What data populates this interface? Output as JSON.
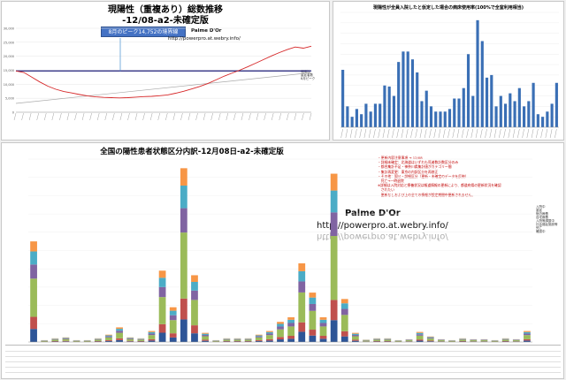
{
  "panel1": {
    "title": "現陽性（重複あり）総数推移",
    "subtitle": "-12/08-a2-未確定版",
    "peak_label": "8月のピーク14,752の境界線",
    "watermark_name": "Palme D'Or",
    "watermark_url": "http://powerpro.at.webry.info/",
    "y_ticks": [
      "30,000",
      "25,000",
      "20,000",
      "15,000",
      "10,000",
      "5,000",
      "0"
    ],
    "legend": [
      "現陽性",
      "重症者数",
      "8月ピーク"
    ]
  },
  "panel2": {
    "title": "現陽性が全員入院したと仮定した場合の病床使用率(100%で全室利用相当)"
  },
  "panel3": {
    "title": "全国の陽性患者状態区分内訳-12月08日-a2-未確定版",
    "watermark_name": "Palme D'Or",
    "watermark_url": "http://powerpro.at.webry.info/",
    "notes": [
      "・更新内容注意事項 → 12/08",
      "・詳細未確定：北海道はいずれも死者数計数区分のみ",
      "・都合集計不足・神奈川県集計値がカテゴリー間",
      "・集計再変更：東京の内訳区分を再修正",
      "・その他：国公・詳細区分（更新・未確定のデータを反映）",
      "　死亡→一時退院",
      "",
      "※詳細は入院対応と療養状況は報道情報の更新により、都道府県の更新状況を確認",
      "　されたい",
      "　更新なしおよび上の全ての情報が設定期間中更新されません。"
    ],
    "legend": [
      "入院中",
      "重症",
      "宿泊療養",
      "自宅療養",
      "入院等調整中",
      "社会福祉施設等",
      "死亡",
      "確認中"
    ]
  },
  "chart_data": [
    {
      "type": "line",
      "title": "現陽性（重複あり）総数推移",
      "subtitle": "-12/08-a2-未確定版",
      "ylim": [
        0,
        30000
      ],
      "reference_line": 14752,
      "series": [
        {
          "values": [
            14752,
            14200,
            12500,
            10800,
            9300,
            8200,
            7400,
            6900,
            6300,
            5800,
            5500,
            5300,
            5200,
            5100,
            5200,
            5400,
            5600,
            5700,
            5900,
            6200,
            6800,
            7500,
            8300,
            9200,
            10200,
            11500,
            12800,
            13900,
            15000,
            16200,
            17500,
            18800,
            20100,
            21300,
            22400,
            23300,
            22900,
            23600
          ]
        }
      ]
    },
    {
      "type": "bar",
      "title": "現陽性が全員入院したと仮定した場合の病床使用率(100%で全室利用相当)",
      "values": [
        110,
        40,
        20,
        35,
        25,
        45,
        30,
        45,
        45,
        80,
        78,
        60,
        125,
        145,
        145,
        130,
        105,
        50,
        70,
        40,
        30,
        30,
        30,
        35,
        55,
        55,
        75,
        140,
        60,
        205,
        165,
        95,
        100,
        40,
        60,
        45,
        65,
        50,
        75,
        40,
        50,
        85,
        25,
        20,
        30,
        45,
        85
      ]
    },
    {
      "type": "bar",
      "title": "全国の陽性患者状態区分内訳-12月08日-a2-未確定版",
      "values": [
        1100,
        20,
        40,
        50,
        20,
        20,
        40,
        80,
        160,
        50,
        40,
        120,
        780,
        380,
        1900,
        730,
        100,
        20,
        40,
        40,
        40,
        80,
        120,
        220,
        270,
        860,
        540,
        270,
        1840,
        470,
        100,
        25,
        40,
        40,
        20,
        30,
        110,
        60,
        30,
        20,
        40,
        30,
        30,
        20,
        40,
        30,
        120
      ]
    }
  ]
}
